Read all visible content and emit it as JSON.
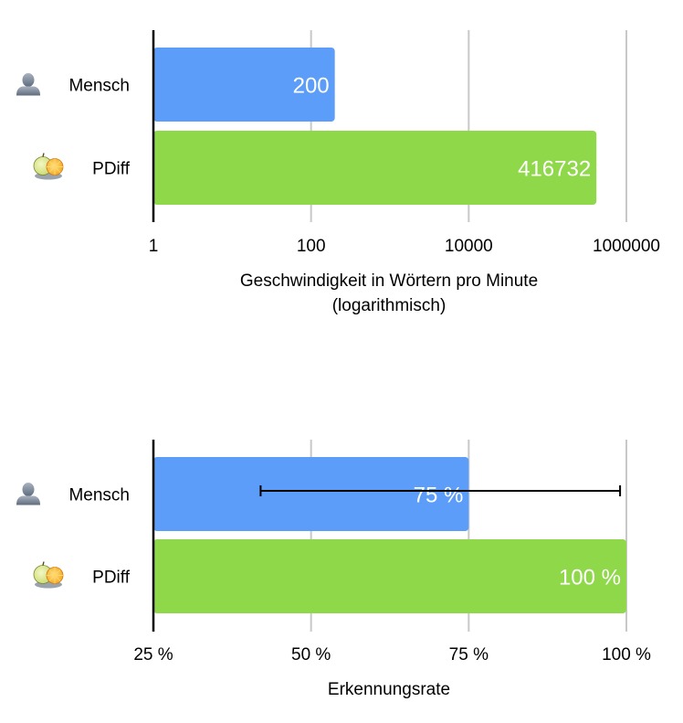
{
  "chart_data": [
    {
      "type": "bar",
      "orientation": "horizontal",
      "scale": "log",
      "categories": [
        "Mensch",
        "PDiff"
      ],
      "category_icons": [
        "person-icon",
        "pdiff-app-icon"
      ],
      "values": [
        200,
        416732
      ],
      "value_labels": [
        "200",
        "416732"
      ],
      "bar_colors": [
        "#5b9df8",
        "#8fd84a"
      ],
      "xlim": [
        1,
        1000000
      ],
      "xticks": [
        1,
        100,
        10000,
        1000000
      ],
      "xtick_labels": [
        "1",
        "100",
        "10000",
        "1000000"
      ],
      "xlabel_lines": [
        "Geschwindigkeit in Wörtern pro Minute",
        "(logarithmisch)"
      ],
      "grid": "vertical"
    },
    {
      "type": "bar",
      "orientation": "horizontal",
      "scale": "linear",
      "categories": [
        "Mensch",
        "PDiff"
      ],
      "category_icons": [
        "person-icon",
        "pdiff-app-icon"
      ],
      "values": [
        75,
        100
      ],
      "value_labels": [
        "75 %",
        "100 %"
      ],
      "bar_colors": [
        "#5b9df8",
        "#8fd84a"
      ],
      "error_bars": [
        [
          42,
          99
        ],
        null
      ],
      "xlim": [
        25,
        100
      ],
      "xticks": [
        25,
        50,
        75,
        100
      ],
      "xtick_labels": [
        "25 %",
        "50 %",
        "75 %",
        "100 %"
      ],
      "xlabel_lines": [
        "Erkennungsrate"
      ],
      "grid": "vertical"
    }
  ]
}
